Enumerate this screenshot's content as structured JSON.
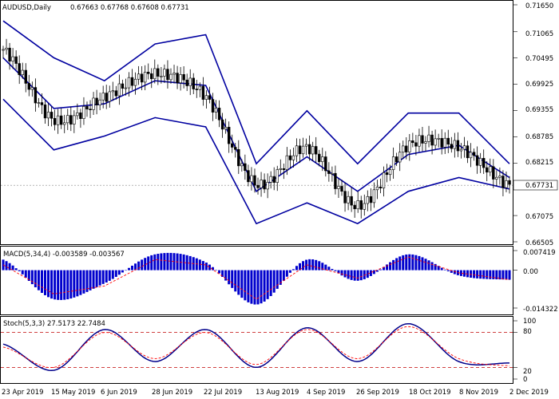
{
  "header": {
    "symbol": "AUDUSD,Daily",
    "ohlc": "0.67663 0.67768 0.67608 0.67731"
  },
  "price_axis": {
    "ticks": [
      "0.71650",
      "0.71065",
      "0.70495",
      "0.69925",
      "0.69355",
      "0.68785",
      "0.68215",
      "0.67645",
      "0.67075",
      "0.66505"
    ],
    "tick_values": [
      0.7165,
      0.71065,
      0.70495,
      0.69925,
      0.69355,
      0.68785,
      0.68215,
      0.67645,
      0.67075,
      0.66505
    ],
    "current_price": "0.67731"
  },
  "macd": {
    "label": "MACD(5,34,4) -0.003589 -0.003567",
    "ticks": [
      "0.007419",
      "0.00",
      "-0.014322"
    ],
    "tick_values": [
      0.007419,
      0.0,
      -0.014322
    ]
  },
  "stoch": {
    "label": "Stoch(5,3,3) 27.5173 22.7484",
    "ticks": [
      "100",
      "80",
      "20",
      "0"
    ],
    "tick_values": [
      100,
      80,
      20,
      0
    ]
  },
  "date_axis": {
    "labels": [
      "23 Apr 2019",
      "15 May 2019",
      "6 Jun 2019",
      "28 Jun 2019",
      "22 Jul 2019",
      "13 Aug 2019",
      "4 Sep 2019",
      "26 Sep 2019",
      "18 Oct 2019",
      "8 Nov 2019",
      "2 Dec 2019"
    ]
  },
  "colors": {
    "background": "#ffffff",
    "candles": "#000000",
    "bands": "#0000a0",
    "macd_histogram": "#0000cd",
    "macd_signal": "#ff0000",
    "stoch_main": "#00008b",
    "stoch_signal": "#ff0000",
    "levels": "#c00000"
  },
  "chart_data": {
    "type": "candlestick",
    "title": "AUDUSD,Daily",
    "x": [
      "23 Apr 2019",
      "15 May 2019",
      "6 Jun 2019",
      "28 Jun 2019",
      "22 Jul 2019",
      "13 Aug 2019",
      "4 Sep 2019",
      "26 Sep 2019",
      "18 Oct 2019",
      "8 Nov 2019",
      "2 Dec 2019"
    ],
    "close": [
      0.7068,
      0.6915,
      0.6965,
      0.7015,
      0.6965,
      0.6775,
      0.6855,
      0.6728,
      0.686,
      0.6855,
      0.6773
    ],
    "bollinger": {
      "upper": [
        0.713,
        0.705,
        0.7,
        0.708,
        0.71,
        0.682,
        0.6935,
        0.682,
        0.693,
        0.693,
        0.682
      ],
      "middle": [
        0.705,
        0.694,
        0.695,
        0.7,
        0.699,
        0.676,
        0.6835,
        0.676,
        0.684,
        0.686,
        0.679
      ],
      "lower": [
        0.696,
        0.685,
        0.688,
        0.692,
        0.69,
        0.669,
        0.6735,
        0.669,
        0.676,
        0.679,
        0.6765
      ]
    },
    "macd": [
      0.004,
      -0.011,
      -0.005,
      0.006,
      0.003,
      -0.013,
      0.004,
      -0.004,
      0.006,
      -0.002,
      -0.0036
    ],
    "macd_signal": [
      0.002,
      -0.009,
      -0.006,
      0.004,
      0.002,
      -0.011,
      0.002,
      -0.003,
      0.005,
      -0.001,
      -0.0036
    ],
    "stoch_main": [
      60,
      15,
      85,
      30,
      85,
      20,
      88,
      30,
      95,
      30,
      27.5
    ],
    "stoch_signal": [
      55,
      20,
      80,
      35,
      80,
      25,
      85,
      35,
      90,
      35,
      22.7
    ],
    "stoch_levels": [
      80,
      20
    ],
    "ylim": [
      0.66505,
      0.7165
    ]
  }
}
